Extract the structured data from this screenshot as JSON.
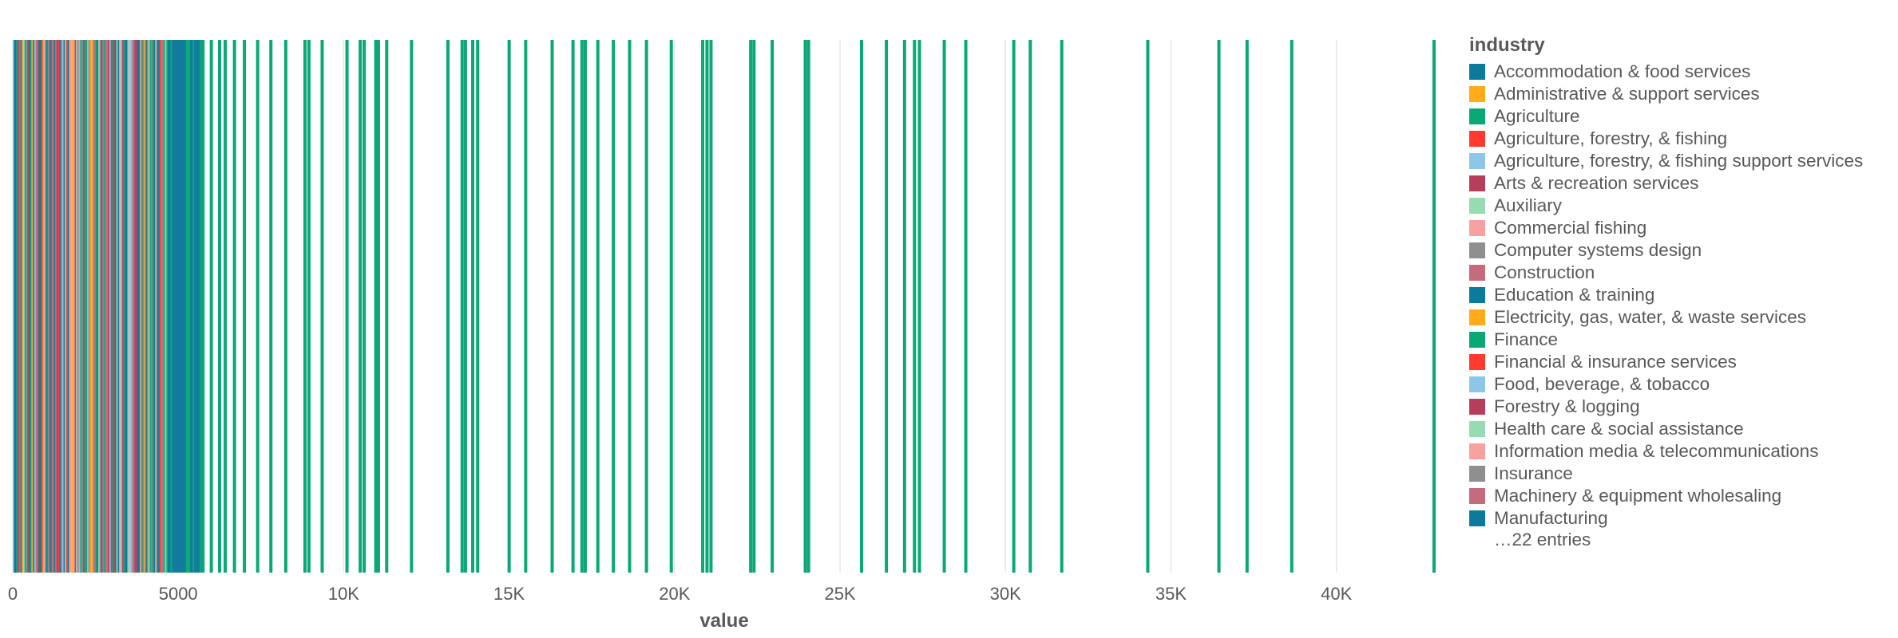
{
  "chart_data": {
    "type": "strip",
    "xlabel": "value",
    "xlim": [
      0,
      43000
    ],
    "x_ticks": [
      "0",
      "5000",
      "10K",
      "15K",
      "20K",
      "25K",
      "30K",
      "35K",
      "40K"
    ],
    "x_tick_values": [
      0,
      5000,
      10000,
      15000,
      20000,
      25000,
      30000,
      35000,
      40000
    ],
    "grid": "vertical",
    "legend_title": "industry",
    "legend_placement": "right",
    "legend_more": "…22 entries",
    "categories": [
      {
        "name": "Accommodation & food services",
        "color": "#0e7a9b"
      },
      {
        "name": "Administrative & support services",
        "color": "#ffab1a"
      },
      {
        "name": "Agriculture",
        "color": "#0aa876"
      },
      {
        "name": "Agriculture, forestry, & fishing",
        "color": "#ff3a2e"
      },
      {
        "name": "Agriculture, forestry, & fishing support services",
        "color": "#8dc6e6"
      },
      {
        "name": "Arts & recreation services",
        "color": "#b53f5b"
      },
      {
        "name": "Auxiliary",
        "color": "#97dbb3"
      },
      {
        "name": "Commercial fishing",
        "color": "#f7a1a1"
      },
      {
        "name": "Computer systems design",
        "color": "#8f8f8f"
      },
      {
        "name": "Construction",
        "color": "#c46b7d"
      },
      {
        "name": "Education & training",
        "color": "#0e7a9b"
      },
      {
        "name": "Electricity, gas, water, & waste services",
        "color": "#ffab1a"
      },
      {
        "name": "Finance",
        "color": "#0aa876"
      },
      {
        "name": "Financial & insurance services",
        "color": "#ff3a2e"
      },
      {
        "name": "Food, beverage, & tobacco",
        "color": "#8dc6e6"
      },
      {
        "name": "Forestry & logging",
        "color": "#b53f5b"
      },
      {
        "name": "Health care & social assistance",
        "color": "#97dbb3"
      },
      {
        "name": "Information media & telecommunications",
        "color": "#f7a1a1"
      },
      {
        "name": "Insurance",
        "color": "#8f8f8f"
      },
      {
        "name": "Machinery & equipment wholesaling",
        "color": "#c46b7d"
      },
      {
        "name": "Manufacturing",
        "color": "#0e7a9b"
      }
    ],
    "dense_region": {
      "from": 0,
      "to": 5700
    },
    "marks": [
      {
        "value": 5750,
        "color": "#0aa876"
      },
      {
        "value": 6000,
        "color": "#0aa876"
      },
      {
        "value": 6250,
        "color": "#0aa876"
      },
      {
        "value": 6420,
        "color": "#0aa876"
      },
      {
        "value": 6700,
        "color": "#0aa876"
      },
      {
        "value": 7000,
        "color": "#0aa876"
      },
      {
        "value": 7400,
        "color": "#0aa876"
      },
      {
        "value": 7800,
        "color": "#0aa876"
      },
      {
        "value": 8250,
        "color": "#0aa876"
      },
      {
        "value": 8830,
        "color": "#0aa876"
      },
      {
        "value": 8950,
        "color": "#0aa876"
      },
      {
        "value": 9350,
        "color": "#0aa876"
      },
      {
        "value": 10100,
        "color": "#0aa876"
      },
      {
        "value": 10500,
        "color": "#0aa876"
      },
      {
        "value": 10620,
        "color": "#0aa876"
      },
      {
        "value": 10970,
        "color": "#0aa876"
      },
      {
        "value": 11050,
        "color": "#0aa876"
      },
      {
        "value": 11300,
        "color": "#0aa876"
      },
      {
        "value": 12050,
        "color": "#0aa876"
      },
      {
        "value": 13150,
        "color": "#0aa876"
      },
      {
        "value": 13580,
        "color": "#0aa876"
      },
      {
        "value": 13680,
        "color": "#0aa876"
      },
      {
        "value": 13900,
        "color": "#0aa876"
      },
      {
        "value": 14050,
        "color": "#0aa876"
      },
      {
        "value": 15000,
        "color": "#0aa876"
      },
      {
        "value": 15500,
        "color": "#0aa876"
      },
      {
        "value": 16300,
        "color": "#0aa876"
      },
      {
        "value": 16930,
        "color": "#0aa876"
      },
      {
        "value": 17200,
        "color": "#0aa876"
      },
      {
        "value": 17300,
        "color": "#0aa876"
      },
      {
        "value": 17680,
        "color": "#0aa876"
      },
      {
        "value": 18150,
        "color": "#0aa876"
      },
      {
        "value": 18640,
        "color": "#0aa876"
      },
      {
        "value": 19150,
        "color": "#0aa876"
      },
      {
        "value": 19900,
        "color": "#0aa876"
      },
      {
        "value": 20850,
        "color": "#0aa876"
      },
      {
        "value": 20980,
        "color": "#0aa876"
      },
      {
        "value": 21100,
        "color": "#0aa876"
      },
      {
        "value": 22300,
        "color": "#0aa876"
      },
      {
        "value": 22400,
        "color": "#0aa876"
      },
      {
        "value": 22950,
        "color": "#0aa876"
      },
      {
        "value": 23950,
        "color": "#0aa876"
      },
      {
        "value": 24050,
        "color": "#0aa876"
      },
      {
        "value": 25650,
        "color": "#0aa876"
      },
      {
        "value": 26400,
        "color": "#0aa876"
      },
      {
        "value": 26950,
        "color": "#0aa876"
      },
      {
        "value": 27250,
        "color": "#0aa876"
      },
      {
        "value": 27400,
        "color": "#0aa876"
      },
      {
        "value": 28150,
        "color": "#0aa876"
      },
      {
        "value": 28800,
        "color": "#0aa876"
      },
      {
        "value": 30250,
        "color": "#0aa876"
      },
      {
        "value": 30750,
        "color": "#0aa876"
      },
      {
        "value": 31700,
        "color": "#0aa876"
      },
      {
        "value": 34300,
        "color": "#0aa876"
      },
      {
        "value": 36450,
        "color": "#0aa876"
      },
      {
        "value": 37300,
        "color": "#0aa876"
      },
      {
        "value": 38650,
        "color": "#0aa876"
      },
      {
        "value": 42950,
        "color": "#0aa876"
      }
    ]
  }
}
